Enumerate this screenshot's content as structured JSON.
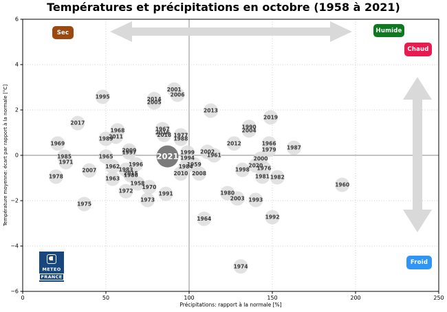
{
  "chart_data": {
    "type": "scatter",
    "title": "Températures et précipitations en octobre (1958 à 2021)",
    "xlabel": "Précipitations: rapport à la normale [%]",
    "ylabel": "Température moyenne: écart par rapport à la normale [°C]",
    "xlim": [
      0,
      250
    ],
    "ylim": [
      -6,
      6
    ],
    "grid": "dotted, reference cross lines at x=100 and y=0",
    "x_ticks": [
      {
        "v": 0,
        "label": "0"
      },
      {
        "v": 50,
        "label": "50"
      },
      {
        "v": 100,
        "label": "100"
      },
      {
        "v": 150,
        "label": "150"
      },
      {
        "v": 200,
        "label": "200"
      },
      {
        "v": 250,
        "label": "250"
      }
    ],
    "y_ticks": [
      {
        "v": 6,
        "label": "6"
      },
      {
        "v": 4,
        "label": "4"
      },
      {
        "v": 2,
        "label": "2"
      },
      {
        "v": 0,
        "label": "0"
      },
      {
        "v": -2,
        "label": "−2"
      },
      {
        "v": -4,
        "label": "−4"
      },
      {
        "v": -6,
        "label": "−6"
      }
    ],
    "highlight_year": "2021",
    "points": [
      {
        "year": "1958",
        "x": 69,
        "y": -1.24
      },
      {
        "year": "1959",
        "x": 103,
        "y": -0.4
      },
      {
        "year": "1960",
        "x": 192,
        "y": -1.3
      },
      {
        "year": "1961",
        "x": 115,
        "y": 0.0
      },
      {
        "year": "1962",
        "x": 54,
        "y": -0.5
      },
      {
        "year": "1963",
        "x": 54,
        "y": -1.03
      },
      {
        "year": "1964",
        "x": 109,
        "y": -2.8
      },
      {
        "year": "1965",
        "x": 50,
        "y": -0.06
      },
      {
        "year": "1966",
        "x": 148,
        "y": 0.52
      },
      {
        "year": "1967",
        "x": 84,
        "y": 1.15
      },
      {
        "year": "1968",
        "x": 57,
        "y": 1.1
      },
      {
        "year": "1969",
        "x": 21,
        "y": 0.52
      },
      {
        "year": "1970",
        "x": 76,
        "y": -1.4
      },
      {
        "year": "1971",
        "x": 26,
        "y": -0.3
      },
      {
        "year": "1972",
        "x": 62,
        "y": -1.58
      },
      {
        "year": "1973",
        "x": 75,
        "y": -1.97
      },
      {
        "year": "1974",
        "x": 131,
        "y": -4.9
      },
      {
        "year": "1975",
        "x": 37,
        "y": -2.15
      },
      {
        "year": "1976",
        "x": 145,
        "y": -0.58
      },
      {
        "year": "1977",
        "x": 95,
        "y": 0.88
      },
      {
        "year": "1978",
        "x": 20,
        "y": -0.94
      },
      {
        "year": "1979",
        "x": 148,
        "y": 0.24
      },
      {
        "year": "1980",
        "x": 123,
        "y": -1.67
      },
      {
        "year": "1981",
        "x": 144,
        "y": -0.94
      },
      {
        "year": "1982",
        "x": 153,
        "y": -0.97
      },
      {
        "year": "1983",
        "x": 62,
        "y": -0.64
      },
      {
        "year": "1984",
        "x": 98,
        "y": -0.5
      },
      {
        "year": "1985",
        "x": 25,
        "y": -0.06
      },
      {
        "year": "1986",
        "x": 65,
        "y": -0.88
      },
      {
        "year": "1987",
        "x": 163,
        "y": 0.33
      },
      {
        "year": "1988",
        "x": 95,
        "y": 0.73
      },
      {
        "year": "1989",
        "x": 50,
        "y": 0.73
      },
      {
        "year": "1990",
        "x": 136,
        "y": 1.25
      },
      {
        "year": "1991",
        "x": 86,
        "y": -1.7
      },
      {
        "year": "1992",
        "x": 150,
        "y": -2.73
      },
      {
        "year": "1993",
        "x": 140,
        "y": -1.97
      },
      {
        "year": "1994",
        "x": 99,
        "y": -0.12
      },
      {
        "year": "1995",
        "x": 48,
        "y": 2.58
      },
      {
        "year": "1996",
        "x": 68,
        "y": -0.4
      },
      {
        "year": "1997",
        "x": 64,
        "y": 0.12
      },
      {
        "year": "1998",
        "x": 132,
        "y": -0.64
      },
      {
        "year": "1999",
        "x": 99,
        "y": 0.12
      },
      {
        "year": "2000",
        "x": 143,
        "y": -0.15
      },
      {
        "year": "2001",
        "x": 91,
        "y": 2.9
      },
      {
        "year": "2002",
        "x": 111,
        "y": 0.15
      },
      {
        "year": "2003",
        "x": 129,
        "y": -1.9
      },
      {
        "year": "2004",
        "x": 136,
        "y": 1.1
      },
      {
        "year": "2005",
        "x": 79,
        "y": 2.33
      },
      {
        "year": "2006",
        "x": 93,
        "y": 2.67
      },
      {
        "year": "2007",
        "x": 40,
        "y": -0.67
      },
      {
        "year": "2008",
        "x": 106,
        "y": -0.8
      },
      {
        "year": "2009",
        "x": 64,
        "y": 0.21
      },
      {
        "year": "2010",
        "x": 95,
        "y": -0.8
      },
      {
        "year": "2011",
        "x": 56,
        "y": 0.82
      },
      {
        "year": "2012",
        "x": 127,
        "y": 0.52
      },
      {
        "year": "2013",
        "x": 113,
        "y": 1.97
      },
      {
        "year": "2014",
        "x": 79,
        "y": 2.48
      },
      {
        "year": "2015",
        "x": 65,
        "y": -0.8
      },
      {
        "year": "2016",
        "x": 84,
        "y": 1.0
      },
      {
        "year": "2017",
        "x": 33,
        "y": 1.42
      },
      {
        "year": "2018",
        "x": 85,
        "y": 0.9
      },
      {
        "year": "2019",
        "x": 149,
        "y": 1.67
      },
      {
        "year": "2020",
        "x": 140,
        "y": -0.45
      },
      {
        "year": "2021",
        "x": 87,
        "y": -0.05
      }
    ]
  },
  "badges": {
    "sec": {
      "label": "Sec",
      "color": "#9a4a10"
    },
    "humide": {
      "label": "Humide",
      "color": "#0d7a1f"
    },
    "chaud": {
      "label": "Chaud",
      "color": "#e91a4f"
    },
    "froid": {
      "label": "Froid",
      "color": "#2f96f5"
    }
  },
  "icons": {
    "horizontal_arrow": "double-arrow-horizontal",
    "vertical_arrow": "double-arrow-vertical"
  },
  "logo": {
    "line1": "METEO",
    "line2": "FRANCE",
    "color": "#17477e"
  },
  "colors": {
    "point_fill": "#dcdcdc",
    "point_label": "#3a3a3a",
    "highlight_fill": "#7b7b7b",
    "highlight_label": "#ffffff",
    "arrow": "#d9d9d9",
    "grid": "#cfcfcf",
    "normal_line": "#9f9f9f",
    "frame": "#000000"
  }
}
